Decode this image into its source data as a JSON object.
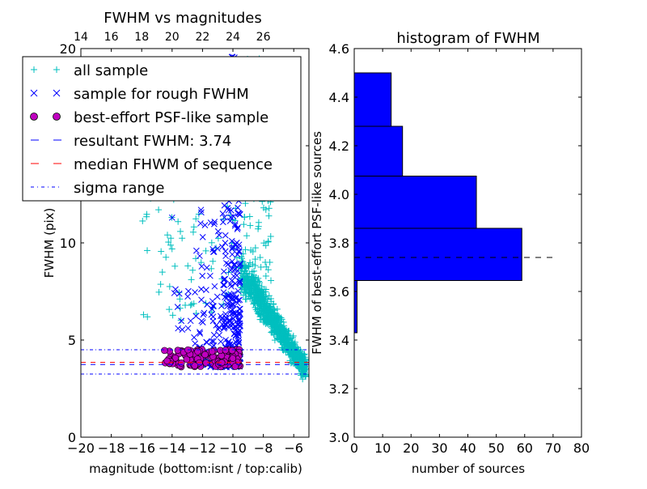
{
  "chart_data": [
    {
      "type": "scatter",
      "title": "FWHM vs magnitudes",
      "xlabel": "magnitude (bottom:isnt / top:calib)",
      "ylabel": "FWHM (pix)",
      "xlim": [
        -20,
        -5
      ],
      "ylim": [
        0,
        20
      ],
      "x_ticks": [
        "−20",
        "−18",
        "−16",
        "−14",
        "−12",
        "−10",
        "−8",
        "−6"
      ],
      "x_tick_values": [
        -20,
        -18,
        -16,
        -14,
        -12,
        -10,
        -8,
        -6
      ],
      "top_x_ticks": [
        "14",
        "16",
        "18",
        "20",
        "22",
        "24",
        "26"
      ],
      "top_x_tick_values": [
        14,
        16,
        18,
        20,
        22,
        24,
        26
      ],
      "top_offset": 34,
      "y_ticks": [
        "0",
        "5",
        "10",
        "15",
        "20"
      ],
      "y_tick_values": [
        0,
        5,
        10,
        15,
        20
      ],
      "grid": false,
      "legend_placement": "upper-left",
      "legend": [
        {
          "label": "all sample",
          "marker": "plus",
          "color": "#00bfbf"
        },
        {
          "label": "sample for rough FWHM",
          "marker": "x",
          "color": "#0000ff"
        },
        {
          "label": "best-effort PSF-like sample",
          "marker": "circle",
          "color": "#bf00bf"
        },
        {
          "label": "resultant FWHM: 3.74",
          "marker": "dash",
          "color": "#0000ff"
        },
        {
          "label": "median FHWM of sequence",
          "marker": "dash",
          "color": "#ff0000"
        },
        {
          "label": "sigma range",
          "marker": "dashdot",
          "color": "#0000ff"
        }
      ],
      "reference_lines": {
        "resultant_fwhm": 3.74,
        "median_fwhm": 3.85,
        "sigma_low": 3.25,
        "sigma_high": 4.5
      },
      "series": [
        {
          "name": "all sample",
          "summary": "dense cloud at magnitude -9.5 to -5.2, FWHM 3 to 20; sparse outliers at -16 to -10, FWHM 6 to 13"
        },
        {
          "name": "sample for rough FWHM",
          "summary": "magnitude -14.5 to -9.5, FWHM 3.5 to 20"
        },
        {
          "name": "best-effort PSF-like sample",
          "summary": "magnitude -14.8 to -9.5, FWHM 3.6 to 4.5"
        }
      ],
      "colors": {
        "all": "#00bfbf",
        "rough": "#0000ff",
        "best": "#bf00bf",
        "median": "#ff0000"
      }
    },
    {
      "type": "bar",
      "orientation": "horizontal",
      "title": "histogram of FWHM",
      "xlabel": "number of sources",
      "ylabel": "FWHM of best-effort PSF-like sources",
      "xlim": [
        0,
        80
      ],
      "ylim": [
        3.0,
        4.6
      ],
      "x_ticks": [
        "0",
        "10",
        "20",
        "30",
        "40",
        "50",
        "60",
        "70",
        "80"
      ],
      "x_tick_values": [
        0,
        10,
        20,
        30,
        40,
        50,
        60,
        70,
        80
      ],
      "y_ticks": [
        "3.0",
        "3.2",
        "3.4",
        "3.6",
        "3.8",
        "4.0",
        "4.2",
        "4.4",
        "4.6"
      ],
      "y_tick_values": [
        3.0,
        3.2,
        3.4,
        3.6,
        3.8,
        4.0,
        4.2,
        4.4,
        4.6
      ],
      "grid": false,
      "bins": [
        {
          "y0": 3.43,
          "y1": 3.645,
          "count": 1
        },
        {
          "y0": 3.645,
          "y1": 3.86,
          "count": 59
        },
        {
          "y0": 3.86,
          "y1": 4.075,
          "count": 43
        },
        {
          "y0": 4.075,
          "y1": 4.28,
          "count": 17
        },
        {
          "y0": 4.28,
          "y1": 4.5,
          "count": 13
        }
      ],
      "reference_line": {
        "y": 3.74,
        "x_max": 70
      },
      "bar_color": "#0000ff"
    }
  ]
}
